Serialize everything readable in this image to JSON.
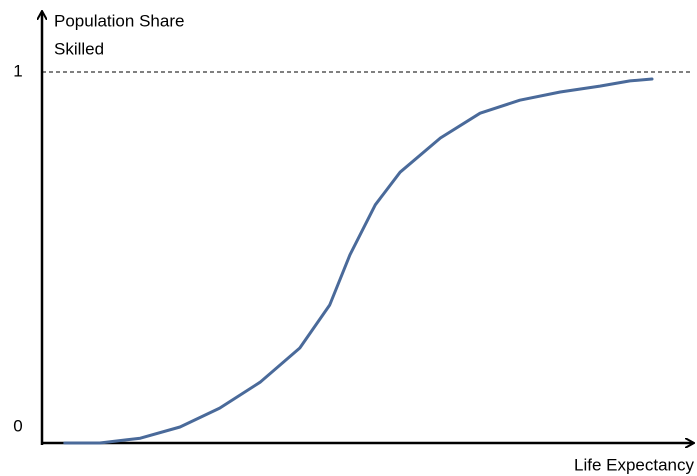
{
  "chart_data": {
    "type": "line",
    "ylabel": [
      "Population Share",
      "Skilled"
    ],
    "xlabel": "Life Expectancy",
    "x": [
      0.035,
      0.089,
      0.151,
      0.212,
      0.273,
      0.335,
      0.396,
      0.442,
      0.473,
      0.512,
      0.55,
      0.612,
      0.673,
      0.734,
      0.796,
      0.857,
      0.903,
      0.937
    ],
    "series": [
      {
        "color": "#4a6a9a",
        "values": [
          0,
          0,
          0.013,
          0.043,
          0.094,
          0.164,
          0.256,
          0.372,
          0.507,
          0.642,
          0.73,
          0.822,
          0.889,
          0.924,
          0.946,
          0.962,
          0.976,
          0.981
        ]
      }
    ],
    "xlim": [
      0,
      1
    ],
    "ylim": [
      0,
      1
    ],
    "yticks": [
      0,
      1
    ],
    "grid": true
  }
}
